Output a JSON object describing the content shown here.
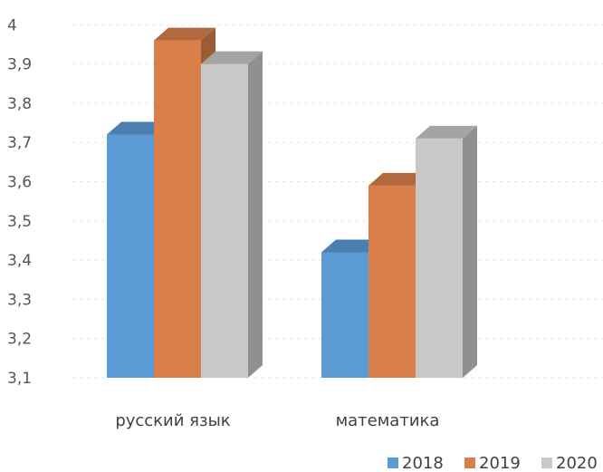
{
  "chart_data": {
    "type": "bar",
    "style": "3d-clustered-column",
    "categories": [
      "русский язык",
      "математика"
    ],
    "series": [
      {
        "name": "2018",
        "values": [
          3.72,
          3.42
        ],
        "color": "#5b9bd5"
      },
      {
        "name": "2019",
        "values": [
          3.96,
          3.59
        ],
        "color": "#d9804a"
      },
      {
        "name": "2020",
        "values": [
          3.9,
          3.71
        ],
        "color": "#c8c8c8"
      }
    ],
    "yticks": [
      "4",
      "3,9",
      "3,8",
      "3,7",
      "3,6",
      "3,5",
      "3,4",
      "3,3",
      "3,2",
      "3,1"
    ],
    "ylim": [
      3.1,
      4.0
    ],
    "title": "",
    "xlabel": "",
    "ylabel": "",
    "grid": true,
    "legend_position": "bottom-right"
  }
}
